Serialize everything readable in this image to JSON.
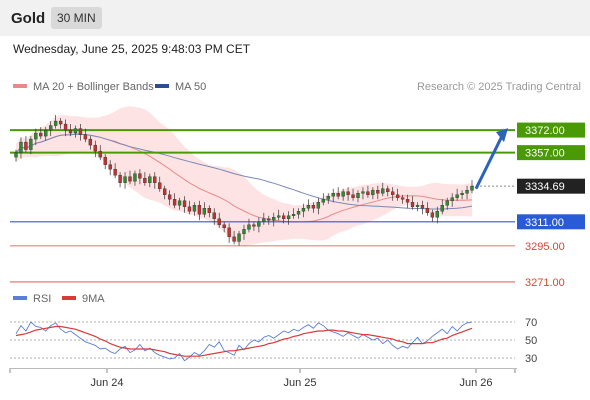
{
  "header": {
    "instrument": "Gold",
    "timeframe": "30 MIN",
    "datetime": "Wednesday, June 25, 2025 9:48:03 PM CET"
  },
  "legend": {
    "bollinger_label": "MA 20 + Bollinger Bands",
    "ma50_label": "MA 50",
    "copyright": "Research © 2025 Trading Central",
    "rsi_label": "RSI",
    "rsi_ma_label": "9MA"
  },
  "colors": {
    "green_level": "#4a9a08",
    "blue_level": "#2a5bd7",
    "red_level": "#d9453a",
    "candle_up": "#2e8b2e",
    "candle_down": "#c53030",
    "bollinger_fill": "#fde3e3",
    "ma20": "#e88a8a",
    "ma50": "#7a88b8",
    "arrow": "#2a63b8",
    "rsi": "#5b7fd9",
    "rsi_ma": "#d93a3a",
    "current_price_bg": "#222222"
  },
  "chart_data": [
    {
      "type": "candlestick",
      "title": "Gold",
      "xlabel": "",
      "ylabel": "",
      "ylim": [
        3259,
        3392
      ],
      "x_tick_labels": [
        "Jun 24",
        "Jun 25",
        "Jun 26"
      ],
      "levels": [
        {
          "value": 3372.0,
          "label": "3372.00",
          "style": "resistance"
        },
        {
          "value": 3357.0,
          "label": "3357.00",
          "style": "resistance"
        },
        {
          "value": 3334.69,
          "label": "3334.69",
          "style": "current"
        },
        {
          "value": 3311.0,
          "label": "3311.00",
          "style": "pivot"
        },
        {
          "value": 3295.0,
          "label": "3295.00",
          "style": "support"
        },
        {
          "value": 3271.0,
          "label": "3271.00",
          "style": "support"
        }
      ],
      "current_price": 3334.69,
      "forecast_arrow": {
        "from": 3333,
        "to": 3372
      },
      "candles_close": [
        3357,
        3364,
        3359,
        3366,
        3370,
        3368,
        3372,
        3375,
        3378,
        3376,
        3372,
        3370,
        3373,
        3369,
        3366,
        3362,
        3358,
        3354,
        3349,
        3346,
        3342,
        3337,
        3341,
        3338,
        3343,
        3340,
        3337,
        3341,
        3337,
        3333,
        3329,
        3326,
        3322,
        3325,
        3321,
        3318,
        3322,
        3316,
        3320,
        3317,
        3313,
        3309,
        3307,
        3301,
        3298,
        3303,
        3306,
        3309,
        3308,
        3311,
        3313,
        3312,
        3314,
        3315,
        3313,
        3315,
        3316,
        3318,
        3320,
        3322,
        3320,
        3324,
        3326,
        3328,
        3330,
        3328,
        3331,
        3329,
        3327,
        3330,
        3331,
        3329,
        3332,
        3330,
        3333,
        3331,
        3329,
        3327,
        3326,
        3324,
        3321,
        3322,
        3320,
        3317,
        3314,
        3318,
        3322,
        3325,
        3327,
        3329,
        3330,
        3332,
        3334.69
      ]
    },
    {
      "type": "line",
      "title": "RSI",
      "ylim": [
        20,
        80
      ],
      "y_ticks": [
        70,
        50,
        30
      ],
      "series": [
        {
          "name": "RSI",
          "values": [
            57,
            66,
            60,
            70,
            65,
            64,
            60,
            66,
            69,
            62,
            58,
            60,
            56,
            52,
            48,
            46,
            44,
            40,
            41,
            37,
            35,
            40,
            43,
            36,
            39,
            45,
            38,
            41,
            36,
            33,
            31,
            29,
            30,
            35,
            27,
            31,
            36,
            33,
            38,
            45,
            42,
            48,
            38,
            36,
            33,
            44,
            39,
            46,
            50,
            48,
            53,
            55,
            52,
            56,
            60,
            58,
            62,
            60,
            64,
            67,
            63,
            69,
            66,
            61,
            59,
            57,
            54,
            58,
            55,
            52,
            56,
            53,
            50,
            52,
            46,
            50,
            44,
            40,
            43,
            41,
            47,
            53,
            46,
            49,
            54,
            58,
            62,
            57,
            65,
            60,
            66,
            69,
            70
          ]
        },
        {
          "name": "9MA",
          "values": [
            55,
            56,
            57,
            59,
            61,
            62,
            63,
            64,
            65,
            65,
            64,
            63,
            62,
            60,
            58,
            56,
            54,
            51,
            49,
            46,
            44,
            42,
            41,
            40,
            40,
            40,
            40,
            40,
            39,
            38,
            37,
            35,
            34,
            33,
            32,
            32,
            32,
            32,
            33,
            34,
            35,
            36,
            37,
            38,
            38,
            39,
            40,
            41,
            42,
            43,
            44,
            46,
            47,
            49,
            51,
            52,
            54,
            55,
            57,
            58,
            59,
            60,
            60,
            61,
            61,
            60,
            60,
            59,
            58,
            57,
            56,
            56,
            55,
            54,
            53,
            52,
            51,
            49,
            48,
            46,
            46,
            46,
            46,
            47,
            47,
            49,
            51,
            52,
            55,
            57,
            59,
            61,
            63
          ]
        }
      ]
    }
  ]
}
